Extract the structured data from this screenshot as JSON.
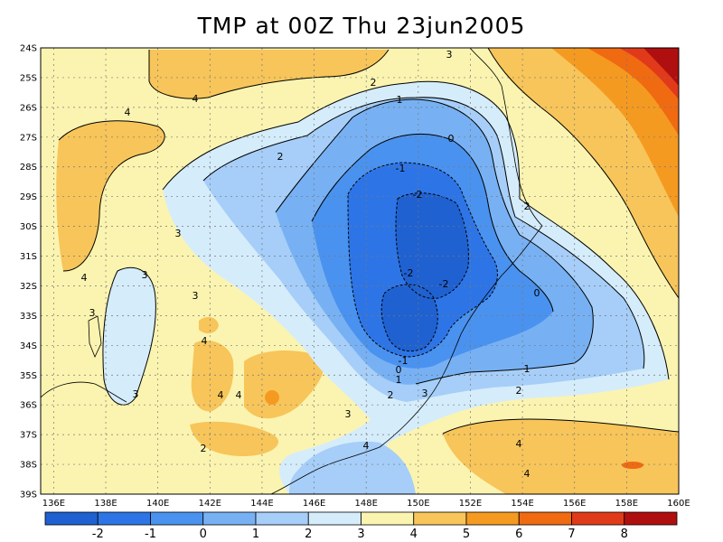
{
  "title": "TMP at 00Z Thu 23jun2005",
  "map": {
    "lon_ticks": [
      "136E",
      "138E",
      "140E",
      "142E",
      "144E",
      "146E",
      "148E",
      "150E",
      "152E",
      "154E",
      "156E",
      "158E",
      "160E"
    ],
    "lat_ticks": [
      "24S",
      "25S",
      "26S",
      "27S",
      "28S",
      "29S",
      "30S",
      "31S",
      "32S",
      "33S",
      "34S",
      "35S",
      "36S",
      "37S",
      "38S",
      "39S"
    ],
    "lon_range": [
      135.5,
      160
    ],
    "lat_range": [
      -24,
      -39
    ],
    "grid": "dotted"
  },
  "contour_labels": [
    "3",
    "2",
    "4",
    "1",
    "4",
    "0",
    "2",
    "-1",
    "-2",
    "2",
    "3",
    "4",
    "3",
    "-2",
    "-2",
    "0",
    "3",
    "3",
    "4",
    "4",
    "4",
    "-1",
    "0",
    "1",
    "1",
    "2",
    "2",
    "3",
    "3",
    "3",
    "4",
    "2",
    "4",
    "4"
  ],
  "colorbar": {
    "labels": [
      "-2",
      "-1",
      "0",
      "1",
      "2",
      "3",
      "4",
      "5",
      "6",
      "7",
      "8"
    ],
    "colors": [
      "#1f61d1",
      "#2d75e6",
      "#4a92ef",
      "#77b1f3",
      "#a6cef8",
      "#d5ecfb",
      "#fbf4b0",
      "#f7c55a",
      "#f59a20",
      "#f06a12",
      "#e03a1a",
      "#b00f0f"
    ]
  },
  "palette": {
    "c_m2": "#1f61d1",
    "c_m1": "#2d75e6",
    "c_0": "#4a92ef",
    "c_1": "#77b1f3",
    "c_2": "#a6cef8",
    "c_3": "#d5ecfb",
    "c_4": "#fbf4b0",
    "c_5": "#f7c55a",
    "c_6": "#f59a20",
    "c_7": "#f06a12",
    "c_8": "#e03a1a",
    "c_9": "#b00f0f"
  }
}
